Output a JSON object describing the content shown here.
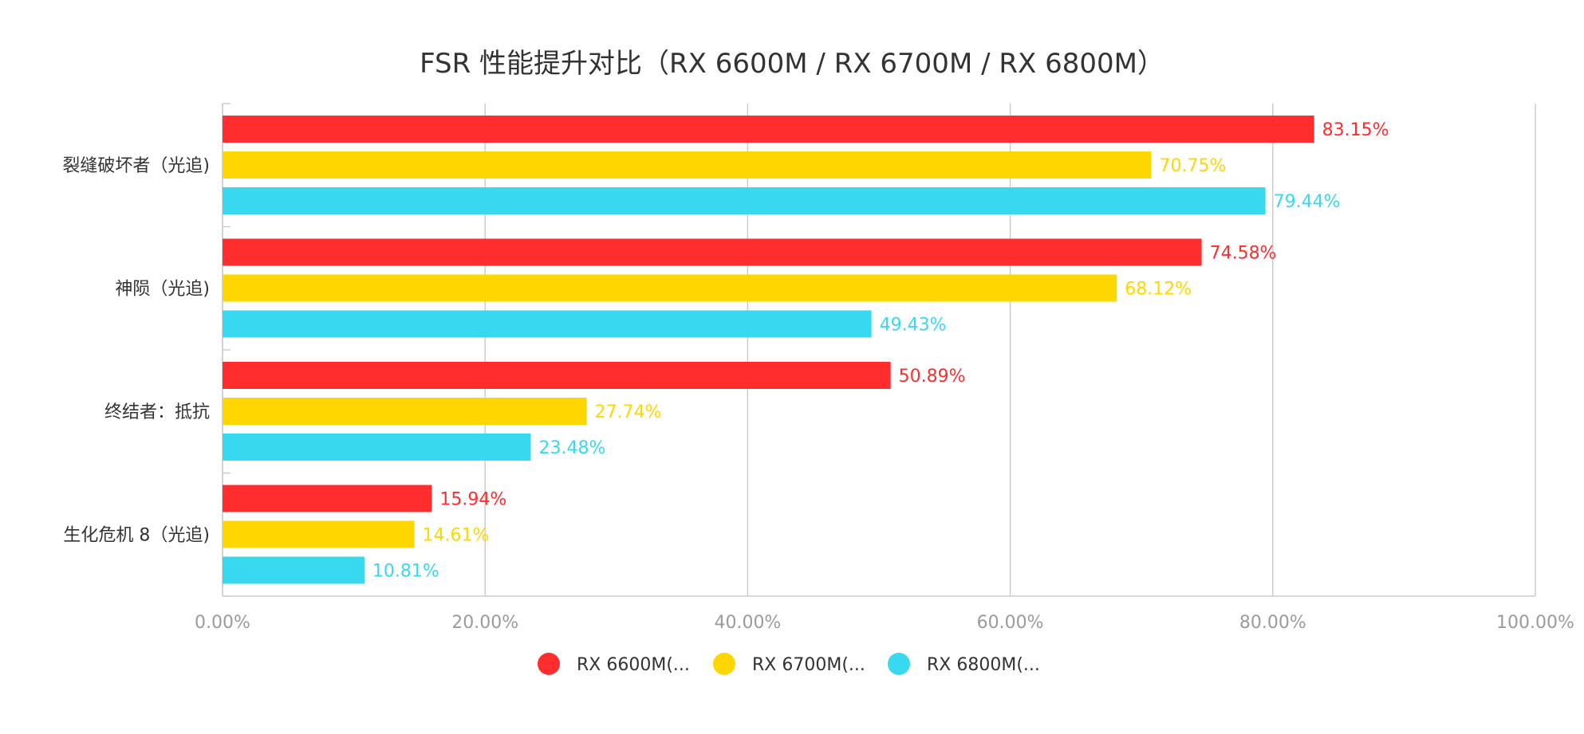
{
  "chart_data": {
    "type": "bar",
    "orientation": "horizontal",
    "title": "FSR 性能提升对比（RX 6600M / RX 6700M / RX 6800M）",
    "xlabel": "",
    "ylabel": "",
    "xlim": [
      0,
      100
    ],
    "x_ticks": [
      "0.00%",
      "20.00%",
      "40.00%",
      "60.00%",
      "80.00%",
      "100.00%"
    ],
    "grid": "vertical",
    "legend_position": "bottom",
    "categories": [
      "裂缝破坏者（光追)",
      "神陨（光追)",
      "终结者：抵抗",
      "生化危机 8（光追)"
    ],
    "series": [
      {
        "name": "RX 6600M(...",
        "color": "#ff2d2d",
        "values": [
          83.15,
          74.58,
          50.89,
          15.94
        ],
        "labels": [
          "83.15%",
          "74.58%",
          "50.89%",
          "15.94%"
        ]
      },
      {
        "name": "RX 6700M(...",
        "color": "#ffd600",
        "values": [
          70.75,
          68.12,
          27.74,
          14.61
        ],
        "labels": [
          "70.75%",
          "68.12%",
          "27.74%",
          "14.61%"
        ]
      },
      {
        "name": "RX 6800M(...",
        "color": "#38d8ee",
        "values": [
          79.44,
          49.43,
          23.48,
          10.81
        ],
        "labels": [
          "79.44%",
          "49.43%",
          "23.48%",
          "10.81%"
        ]
      }
    ]
  }
}
